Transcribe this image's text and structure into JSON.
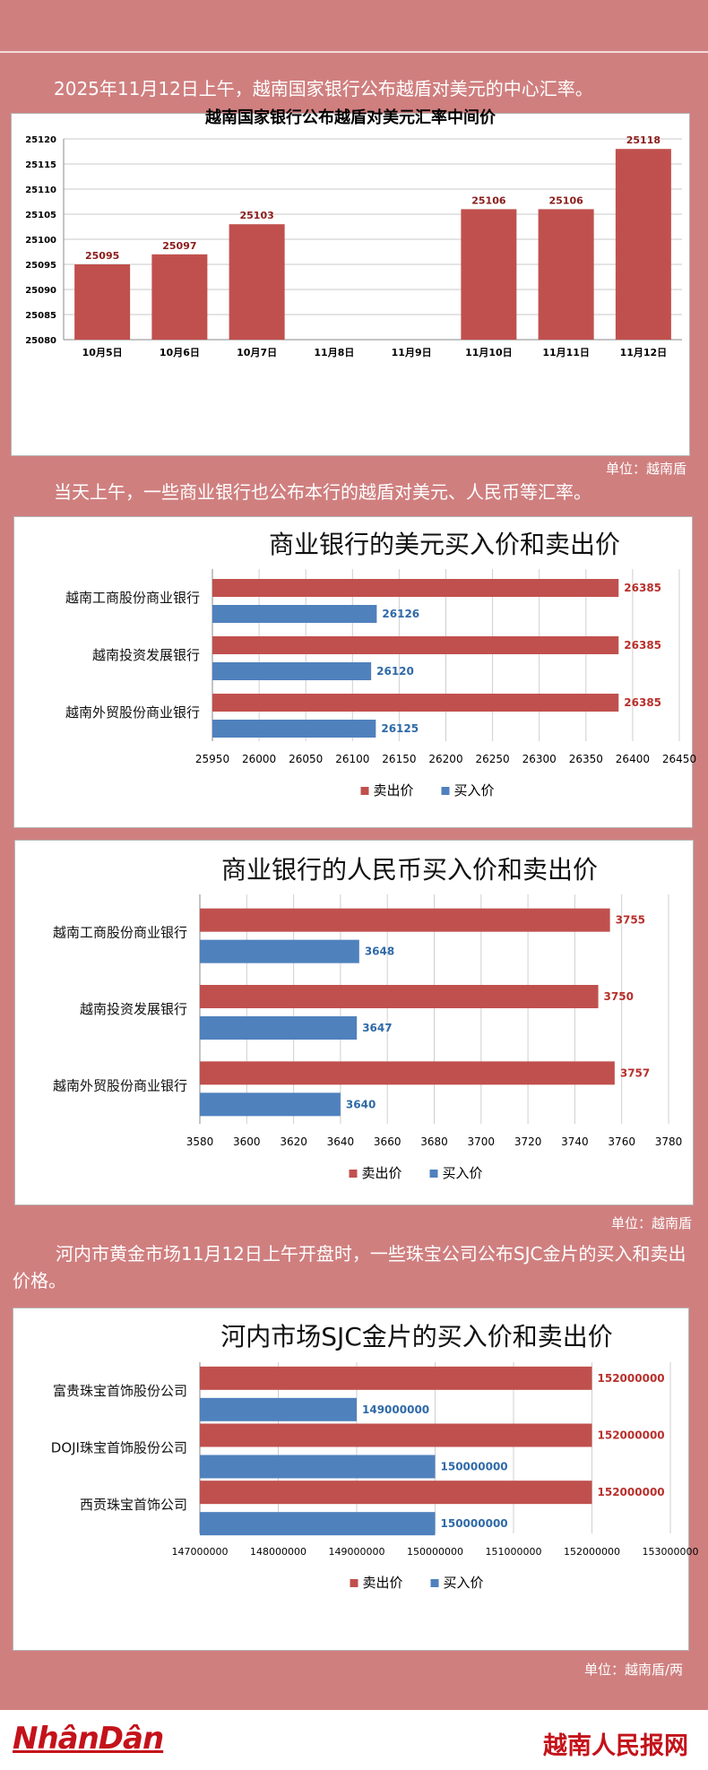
{
  "intro": {
    "line1": "2025年11月12日上午，越南国家银行公布越盾对美元的中心汇率。",
    "line2": "当天上午，一些商业银行也公布本行的越盾对美元、人民币等汇率。",
    "line3": "河内市黄金市场11月12日上午开盘时，一些珠宝公司公布SJC金片的买入和卖出价格。"
  },
  "units": {
    "unit1": "单位：越南盾",
    "unit2": "单位：越南盾",
    "unit3": "单位：越南盾/两"
  },
  "footer": {
    "logo": "NhânDân",
    "brand": "越南人民报网"
  },
  "colors": {
    "sell": "#c0504d",
    "buy": "#4f81bd",
    "background": "#d07f7f"
  },
  "chart_data": [
    {
      "type": "bar",
      "title": "越南国家银行公布越盾对美元汇率中间价",
      "categories": [
        "10月5日",
        "10月6日",
        "10月7日",
        "11月8日",
        "11月9日",
        "11月10日",
        "11月11日",
        "11月12日"
      ],
      "values": [
        25095,
        25097,
        25103,
        null,
        null,
        25106,
        25106,
        25118
      ],
      "data_labels": [
        "25095",
        "25097",
        "25103",
        "",
        "",
        "25106",
        "25106",
        "25118"
      ],
      "yticks": [
        "25080",
        "25085",
        "25090",
        "25095",
        "25100",
        "25105",
        "25110",
        "25115",
        "25120"
      ],
      "ylim": [
        25080,
        25120
      ],
      "grid": true
    },
    {
      "type": "bar",
      "orientation": "horizontal",
      "title": "商业银行的美元买入价和卖出价",
      "categories": [
        "越南工商股份商业银行",
        "越南投资发展银行",
        "越南外贸股份商业银行"
      ],
      "series": [
        {
          "name": "卖出价",
          "values": [
            26385,
            26385,
            26385
          ],
          "labels": [
            "26385",
            "26385",
            "26385"
          ]
        },
        {
          "name": "买入价",
          "values": [
            26126,
            26120,
            26125
          ],
          "labels": [
            "26126",
            "26120",
            "26125"
          ]
        }
      ],
      "xticks": [
        "25950",
        "26000",
        "26050",
        "26100",
        "26150",
        "26200",
        "26250",
        "26300",
        "26350",
        "26400",
        "26450"
      ],
      "xlim": [
        25950,
        26450
      ],
      "legend": "bottom",
      "grid": true
    },
    {
      "type": "bar",
      "orientation": "horizontal",
      "title": "商业银行的人民币买入价和卖出价",
      "categories": [
        "越南工商股份商业银行",
        "越南投资发展银行",
        "越南外贸股份商业银行"
      ],
      "series": [
        {
          "name": "卖出价",
          "values": [
            3755,
            3750,
            3757
          ],
          "labels": [
            "3755",
            "3750",
            "3757"
          ]
        },
        {
          "name": "买入价",
          "values": [
            3648,
            3647,
            3640
          ],
          "labels": [
            "3648",
            "3647",
            "3640"
          ]
        }
      ],
      "xticks": [
        "3580",
        "3600",
        "3620",
        "3640",
        "3660",
        "3680",
        "3700",
        "3720",
        "3740",
        "3760",
        "3780"
      ],
      "xlim": [
        3580,
        3780
      ],
      "legend": "bottom",
      "grid": true
    },
    {
      "type": "bar",
      "orientation": "horizontal",
      "title": "河内市场SJC金片的买入价和卖出价",
      "categories": [
        "富贵珠宝首饰股份公司",
        "DOJI珠宝首饰股份公司",
        "西贡珠宝首饰公司"
      ],
      "series": [
        {
          "name": "卖出价",
          "values": [
            152000000,
            152000000,
            152000000
          ],
          "labels": [
            "152000000",
            "152000000",
            "152000000"
          ]
        },
        {
          "name": "买入价",
          "values": [
            149000000,
            150000000,
            150000000
          ],
          "labels": [
            "149000000",
            "150000000",
            "150000000"
          ]
        }
      ],
      "xticks": [
        "147000000",
        "148000000",
        "149000000",
        "150000000",
        "151000000",
        "152000000",
        "153000000"
      ],
      "xlim": [
        147000000,
        153000000
      ],
      "legend": "bottom",
      "grid": true
    }
  ]
}
